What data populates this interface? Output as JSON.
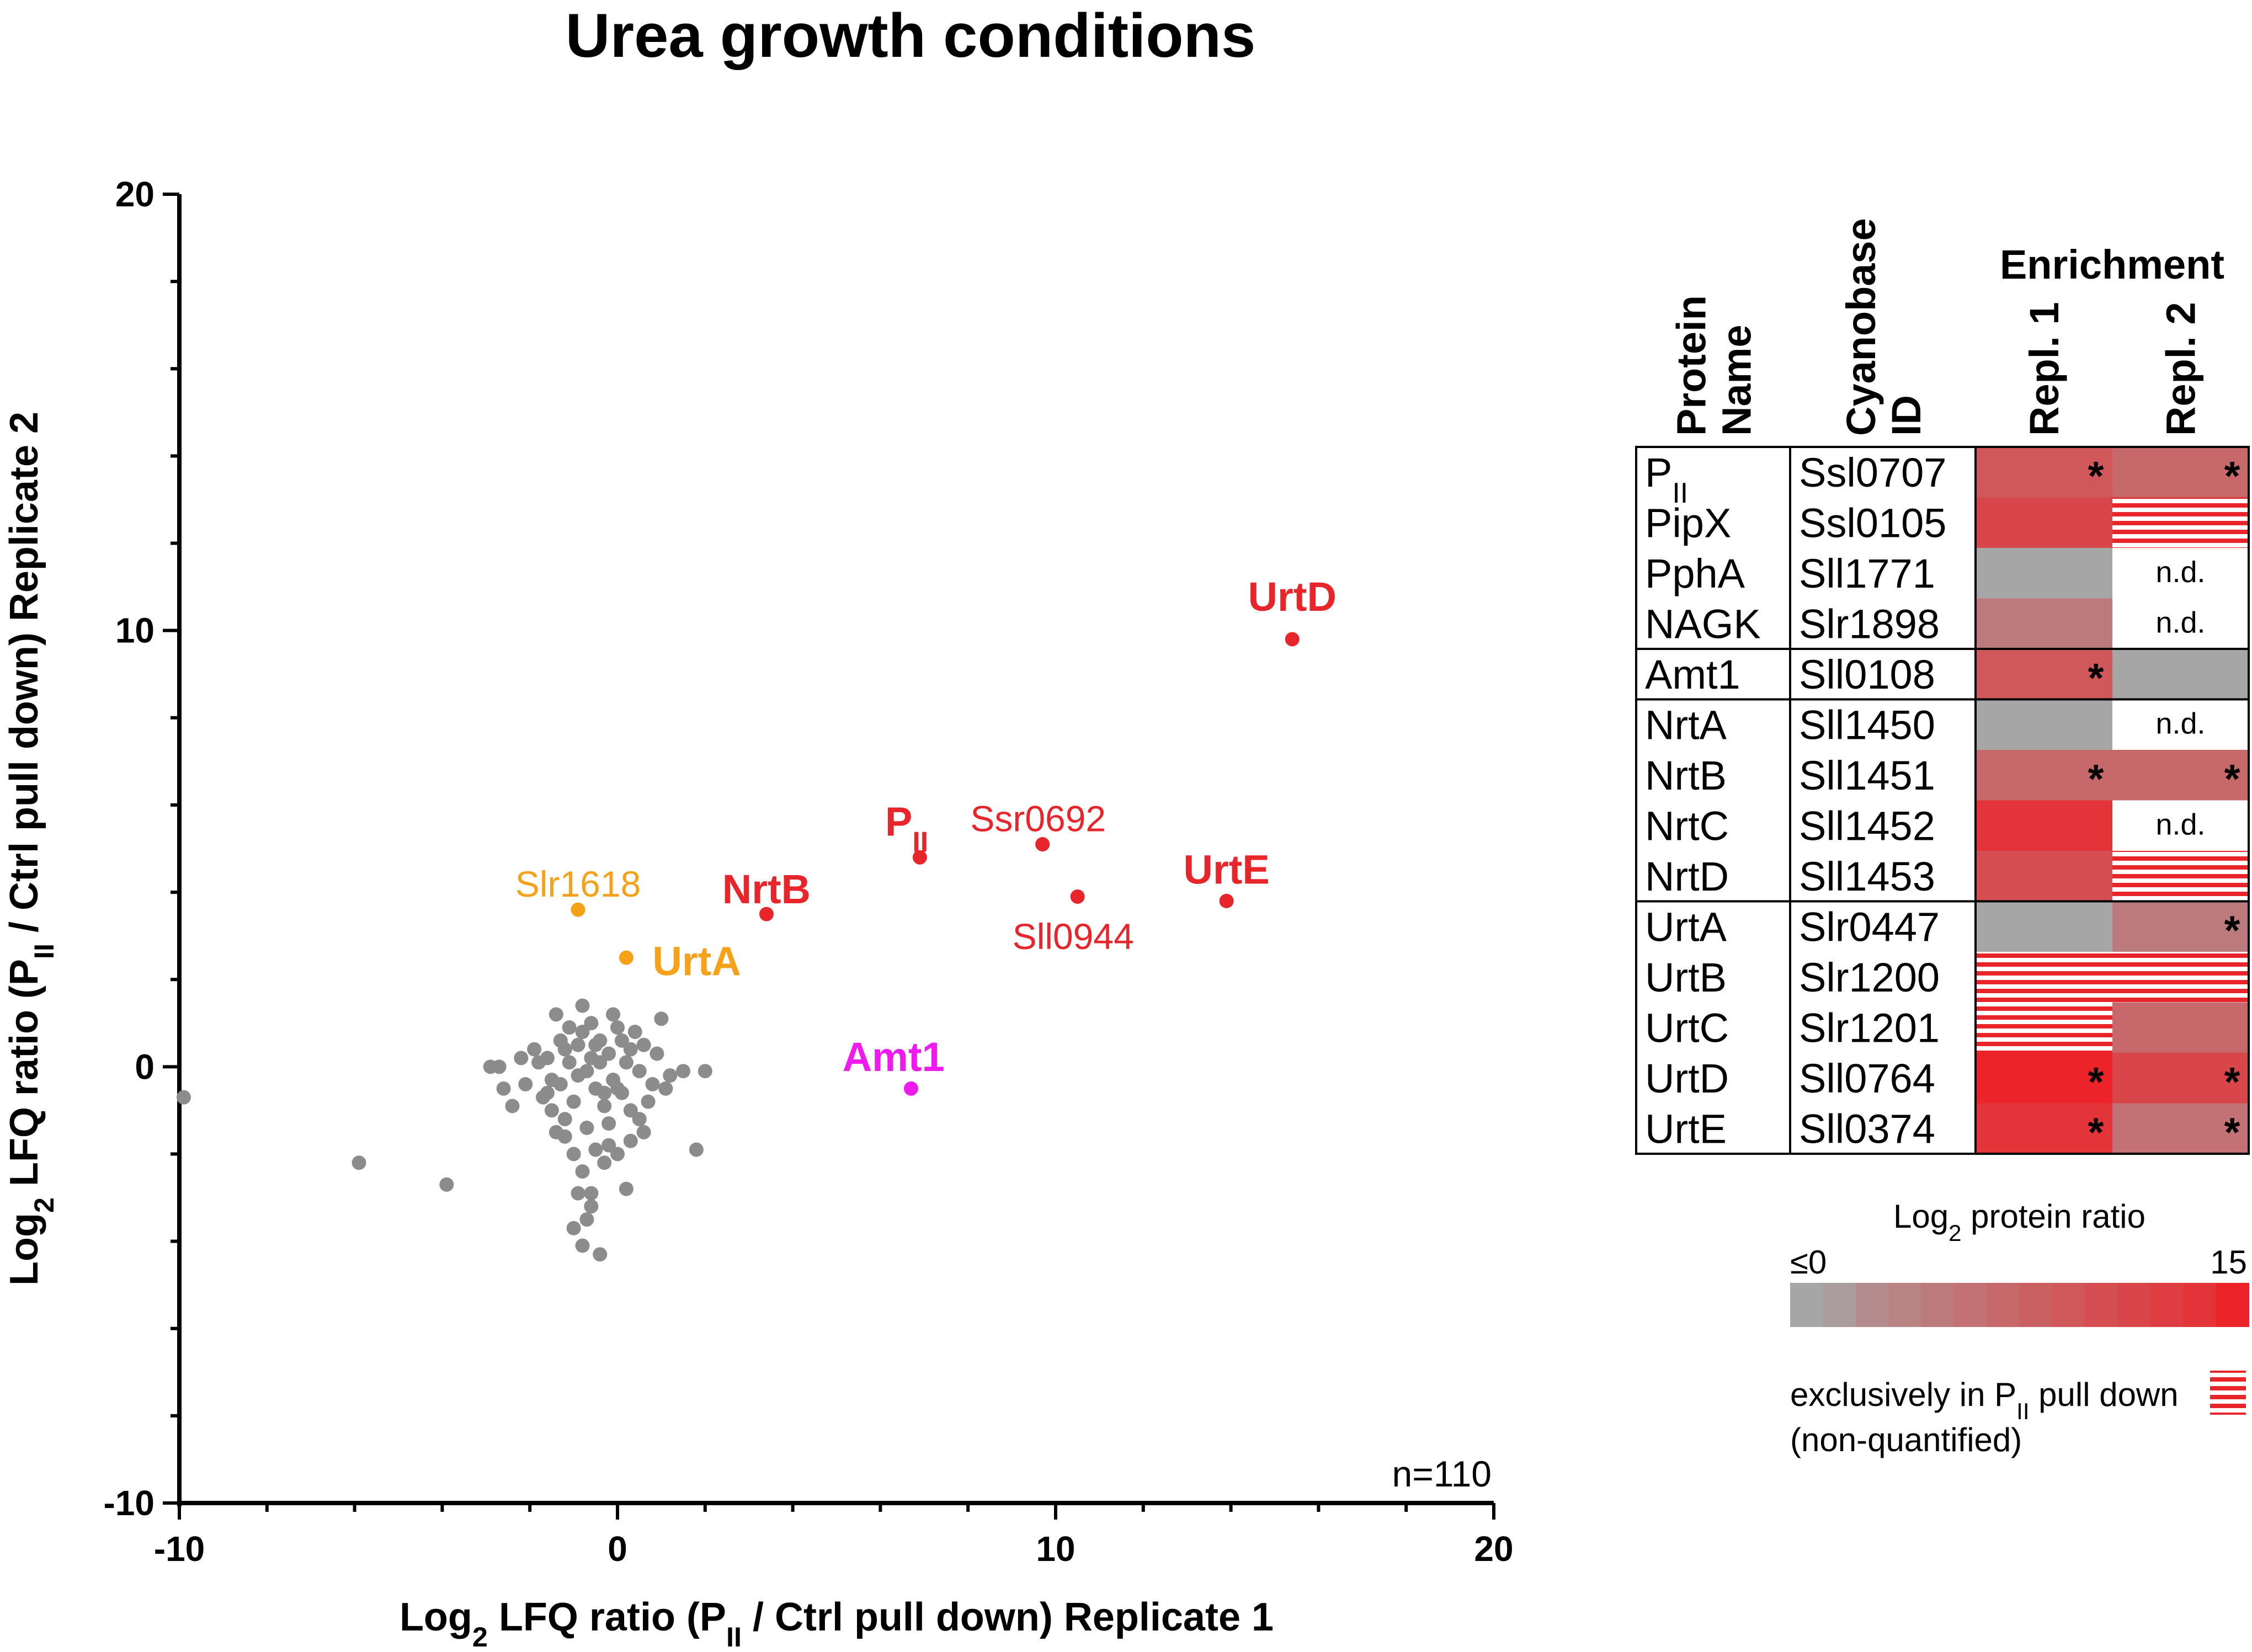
{
  "title": "Urea growth conditions",
  "colors": {
    "gray": "#8c8c8c",
    "red": "#e8252a",
    "orange": "#f5a21a",
    "magenta": "#ee1aee",
    "cellGray": "#a6a6a6",
    "axis": "#000000"
  },
  "chart_data": {
    "type": "scatter",
    "title": "Urea growth conditions",
    "xlabel": {
      "prefix": "Log",
      "sub": "2",
      "mid": " LFQ ratio (P",
      "sub2": "II",
      "suffix": " / Ctrl pull down) Replicate 1"
    },
    "ylabel": {
      "prefix": "Log",
      "sub": "2",
      "mid": " LFQ ratio (P",
      "sub2": "II",
      "suffix": " / Ctrl pull down) Replicate 2"
    },
    "xlim": [
      -10,
      20
    ],
    "ylim": [
      -10,
      20
    ],
    "xticks": [
      -10,
      0,
      10,
      20
    ],
    "yticks": [
      -10,
      0,
      10,
      20
    ],
    "n_label": "n=110",
    "background_points": [
      [
        -9.9,
        -0.7
      ],
      [
        -5.9,
        -2.2
      ],
      [
        -3.9,
        -2.7
      ],
      [
        -2.9,
        0
      ],
      [
        -2.7,
        0
      ],
      [
        -2.6,
        -0.5
      ],
      [
        -2.4,
        -0.9
      ],
      [
        -2.1,
        -0.4
      ],
      [
        -1.9,
        0.4
      ],
      [
        -1.7,
        -0.7
      ],
      [
        -1.6,
        0.2
      ],
      [
        -1.5,
        -0.3
      ],
      [
        -1.4,
        1.2
      ],
      [
        -1.3,
        0.6
      ],
      [
        -1.2,
        -1.2
      ],
      [
        -1.1,
        0.1
      ],
      [
        -1.0,
        -0.8
      ],
      [
        -0.9,
        -0.2
      ],
      [
        -0.8,
        1.4
      ],
      [
        -0.8,
        0.8
      ],
      [
        -0.7,
        -1.4
      ],
      [
        -0.6,
        0.2
      ],
      [
        -0.5,
        -0.5
      ],
      [
        -0.4,
        0.6
      ],
      [
        -0.3,
        -0.9
      ],
      [
        -0.2,
        0.3
      ],
      [
        -0.1,
        -0.3
      ],
      [
        0.0,
        0.9
      ],
      [
        0.1,
        -0.6
      ],
      [
        0.2,
        0.1
      ],
      [
        0.3,
        -1.7
      ],
      [
        0.5,
        -0.1
      ],
      [
        0.6,
        0.5
      ],
      [
        0.8,
        -0.4
      ],
      [
        1.0,
        1.1
      ],
      [
        1.2,
        -0.2
      ],
      [
        1.5,
        -0.1
      ],
      [
        1.8,
        -1.9
      ],
      [
        2.0,
        -0.1
      ],
      [
        0.9,
        0.3
      ],
      [
        -1.2,
        -1.6
      ],
      [
        -1.0,
        -2.0
      ],
      [
        -0.8,
        -2.4
      ],
      [
        -0.6,
        -2.9
      ],
      [
        -1.0,
        -3.7
      ],
      [
        -0.7,
        -3.5
      ],
      [
        -0.8,
        -4.1
      ],
      [
        -0.4,
        -4.3
      ],
      [
        -0.5,
        -1.9
      ],
      [
        -0.3,
        -2.2
      ],
      [
        0.2,
        -2.8
      ],
      [
        0.0,
        -2.0
      ],
      [
        -0.2,
        -1.3
      ],
      [
        -1.5,
        -1.0
      ],
      [
        -1.8,
        0.1
      ],
      [
        -0.6,
        1.0
      ],
      [
        -0.4,
        0.1
      ],
      [
        -0.9,
        0.5
      ],
      [
        -1.3,
        -0.4
      ],
      [
        0.3,
        0.4
      ],
      [
        0.7,
        -0.8
      ],
      [
        -0.1,
        1.2
      ],
      [
        0.4,
        0.8
      ],
      [
        -0.7,
        -0.1
      ],
      [
        -1.1,
        0.9
      ],
      [
        -0.3,
        -0.6
      ],
      [
        0.5,
        -1.2
      ],
      [
        -0.5,
        0.5
      ],
      [
        -1.6,
        -0.6
      ],
      [
        0.1,
        0.6
      ],
      [
        -0.2,
        -1.8
      ],
      [
        0.6,
        -1.5
      ],
      [
        -2.2,
        0.2
      ],
      [
        -1.4,
        -1.5
      ],
      [
        -0.9,
        -2.9
      ],
      [
        0.0,
        -0.5
      ],
      [
        1.1,
        -0.5
      ],
      [
        -0.6,
        -3.2
      ],
      [
        0.3,
        -1.0
      ],
      [
        -1.2,
        0.4
      ]
    ],
    "highlights": [
      {
        "name": "UrtD",
        "x": 15.4,
        "y": 9.8,
        "color": "red",
        "bold": true,
        "lx": 15.4,
        "ly": 10.45,
        "anchor": "middle"
      },
      {
        "name": "UrtE",
        "x": 13.9,
        "y": 3.8,
        "color": "red",
        "bold": true,
        "lx": 13.9,
        "ly": 4.2,
        "anchor": "middle"
      },
      {
        "name": "P",
        "sub": "II",
        "x": 6.9,
        "y": 4.8,
        "color": "red",
        "bold": true,
        "lx": 6.6,
        "ly": 5.3,
        "anchor": "middle"
      },
      {
        "name": "Ssr0692",
        "x": 9.7,
        "y": 5.1,
        "color": "red",
        "bold": false,
        "lx": 9.6,
        "ly": 5.4,
        "anchor": "middle"
      },
      {
        "name": "Sll0944",
        "x": 10.5,
        "y": 3.9,
        "color": "red",
        "bold": false,
        "lx": 10.4,
        "ly": 2.7,
        "anchor": "middle"
      },
      {
        "name": "NrtB",
        "x": 3.4,
        "y": 3.5,
        "color": "red",
        "bold": true,
        "lx": 3.4,
        "ly": 3.75,
        "anchor": "middle"
      },
      {
        "name": "Slr1618",
        "x": -0.9,
        "y": 3.6,
        "color": "orange",
        "bold": false,
        "lx": -0.9,
        "ly": 3.9,
        "anchor": "middle"
      },
      {
        "name": "UrtA",
        "x": 0.2,
        "y": 2.5,
        "color": "orange",
        "bold": true,
        "lx": 0.8,
        "ly": 2.1,
        "anchor": "start"
      },
      {
        "name": "Amt1",
        "x": 6.7,
        "y": -0.5,
        "color": "magenta",
        "bold": true,
        "lx": 6.3,
        "ly": -0.1,
        "anchor": "middle"
      }
    ]
  },
  "table": {
    "header_protein": [
      "Protein",
      "Name"
    ],
    "header_cyano": [
      "Cyanobase",
      "ID"
    ],
    "header_enrichment": "Enrichment",
    "header_repl": [
      "Repl. 1",
      "Repl. 2"
    ],
    "groups": [
      [
        {
          "name": "P",
          "sub": "II",
          "id": "Ssl0707",
          "r1": 9,
          "r1s": "*",
          "r2": 7,
          "r2s": "*"
        },
        {
          "name": "PipX",
          "id": "Ssl0105",
          "r1": 11,
          "r1s": "",
          "r2": "excl",
          "r2s": ""
        },
        {
          "name": "PphA",
          "id": "Sll1771",
          "r1": 0,
          "r1s": "",
          "r2": "nd",
          "r2s": "n.d."
        },
        {
          "name": "NAGK",
          "id": "Slr1898",
          "r1": 5,
          "r1s": "",
          "r2": "nd",
          "r2s": "n.d."
        }
      ],
      [
        {
          "name": "Amt1",
          "id": "Sll0108",
          "r1": 9,
          "r1s": "*",
          "r2": 0,
          "r2s": ""
        }
      ],
      [
        {
          "name": "NrtA",
          "id": "Sll1450",
          "r1": 0,
          "r1s": "",
          "r2": "nd",
          "r2s": "n.d."
        },
        {
          "name": "NrtB",
          "id": "Sll1451",
          "r1": 7,
          "r1s": "*",
          "r2": 7,
          "r2s": "*"
        },
        {
          "name": "NrtC",
          "id": "Sll1452",
          "r1": 13,
          "r1s": "",
          "r2": "nd",
          "r2s": "n.d."
        },
        {
          "name": "NrtD",
          "id": "Sll1453",
          "r1": 10,
          "r1s": "",
          "r2": "excl",
          "r2s": ""
        }
      ],
      [
        {
          "name": "UrtA",
          "id": "Slr0447",
          "r1": 0,
          "r1s": "",
          "r2": 5,
          "r2s": "*"
        },
        {
          "name": "UrtB",
          "id": "Slr1200",
          "r1": "excl",
          "r1s": "",
          "r2": "excl",
          "r2s": ""
        },
        {
          "name": "UrtC",
          "id": "Slr1201",
          "r1": "excl",
          "r1s": "",
          "r2": 7,
          "r2s": ""
        },
        {
          "name": "UrtD",
          "id": "Sll0764",
          "r1": 15,
          "r1s": "*",
          "r2": 11,
          "r2s": "*"
        },
        {
          "name": "UrtE",
          "id": "Sll0374",
          "r1": 13,
          "r1s": "*",
          "r2": 6,
          "r2s": "*"
        }
      ]
    ]
  },
  "legend": {
    "title_prefix": "Log",
    "title_sub": "2",
    "title_suffix": " protein ratio",
    "min_label": "≤0",
    "max_label": "15",
    "scale_steps": [
      0,
      1,
      3,
      4,
      5,
      6,
      7,
      8,
      9,
      10,
      11,
      12,
      13,
      15
    ],
    "exclusive_prefix": "exclusively in P",
    "exclusive_sub": "II",
    "exclusive_suffix": " pull down",
    "nonquant": "(non-quantified)"
  }
}
